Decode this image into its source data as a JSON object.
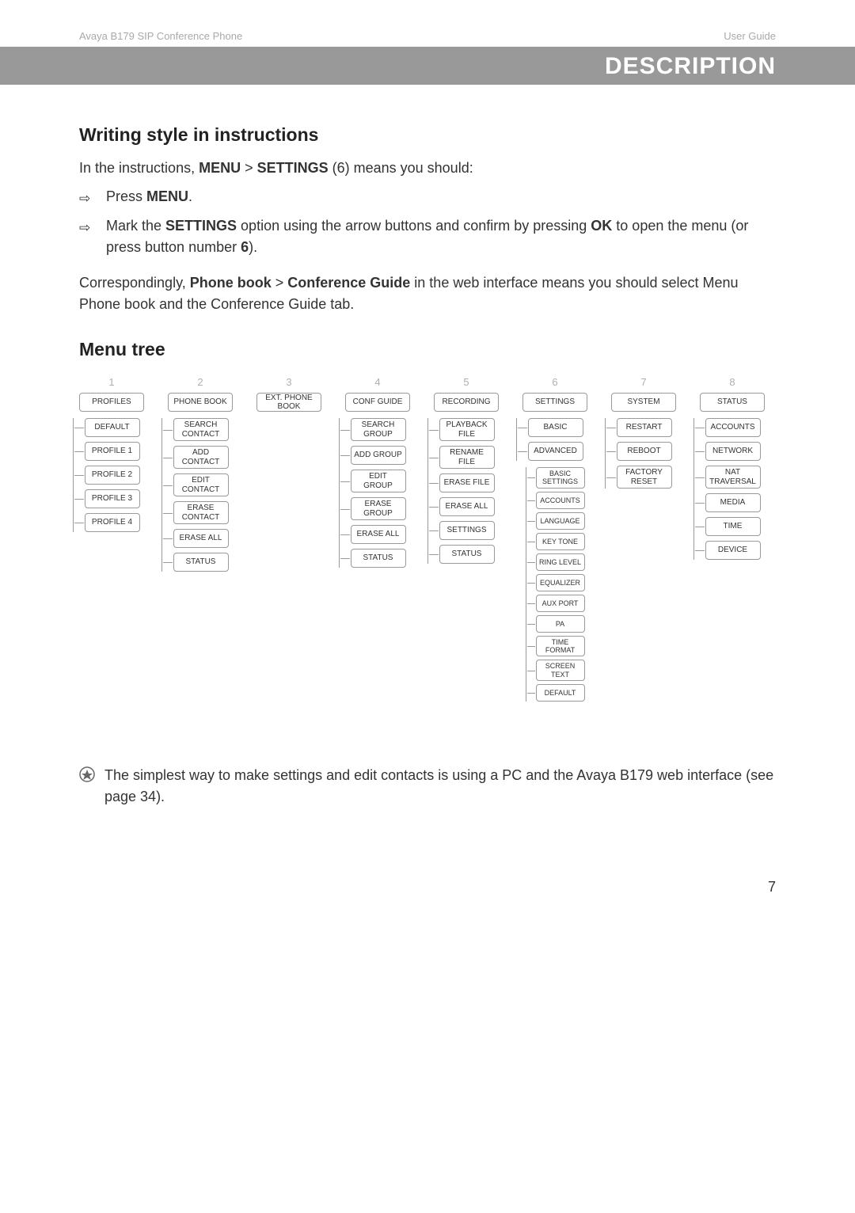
{
  "header": {
    "left": "Avaya B179 SIP Conference Phone",
    "right": "User Guide"
  },
  "banner": "DESCRIPTION",
  "section1": {
    "title": "Writing style in instructions",
    "intro_pre": "In the instructions, ",
    "intro_b1": "MENU",
    "intro_gt": " > ",
    "intro_b2": "SETTINGS",
    "intro_post": " (6) means you should:",
    "step1_pre": "Press ",
    "step1_b": "MENU",
    "step1_post": ".",
    "step2_pre": "Mark the ",
    "step2_b1": "SETTINGS",
    "step2_mid": " option using the arrow buttons and confirm by pressing ",
    "step2_b2": "OK",
    "step2_mid2": " to open the menu (or press button number ",
    "step2_b3": "6",
    "step2_post": ").",
    "corr_pre": "Correspondingly, ",
    "corr_b1": "Phone book",
    "corr_gt": " > ",
    "corr_b2": "Conference Guide",
    "corr_post": " in the web interface means you should select Menu Phone book and the Conference Guide tab."
  },
  "menutree_title": "Menu tree",
  "cols": [
    {
      "num": "1",
      "top": "PROFILES",
      "children": [
        "DEFAULT",
        "PROFILE 1",
        "PROFILE 2",
        "PROFILE 3",
        "PROFILE 4"
      ]
    },
    {
      "num": "2",
      "top": "PHONE BOOK",
      "children": [
        "SEARCH CONTACT",
        "ADD CONTACT",
        "EDIT CONTACT",
        "ERASE CONTACT",
        "ERASE ALL",
        "STATUS"
      ]
    },
    {
      "num": "3",
      "top": "EXT. PHONE BOOK",
      "children": []
    },
    {
      "num": "4",
      "top": "CONF GUIDE",
      "children": [
        "SEARCH GROUP",
        "ADD GROUP",
        "EDIT GROUP",
        "ERASE GROUP",
        "ERASE ALL",
        "STATUS"
      ]
    },
    {
      "num": "5",
      "top": "RECORDING",
      "children": [
        "PLAYBACK FILE",
        "RENAME FILE",
        "ERASE FILE",
        "ERASE ALL",
        "SETTINGS",
        "STATUS"
      ]
    },
    {
      "num": "6",
      "top": "SETTINGS",
      "children": [
        "BASIC",
        "ADVANCED"
      ],
      "sub": [
        "BASIC SETTINGS",
        "ACCOUNTS",
        "LANGUAGE",
        "KEY TONE",
        "RING LEVEL",
        "EQUALIZER",
        "AUX PORT",
        "PA",
        "TIME FORMAT",
        "SCREEN TEXT",
        "DEFAULT"
      ]
    },
    {
      "num": "7",
      "top": "SYSTEM",
      "children": [
        "RESTART",
        "REBOOT",
        "FACTORY RESET"
      ]
    },
    {
      "num": "8",
      "top": "STATUS",
      "children": [
        "ACCOUNTS",
        "NETWORK",
        "NAT TRAVERSAL",
        "MEDIA",
        "TIME",
        "DEVICE"
      ]
    }
  ],
  "tip": "The simplest way to make settings and edit contacts is using a PC and the Avaya B179 web interface (see page 34).",
  "pagenum": "7"
}
